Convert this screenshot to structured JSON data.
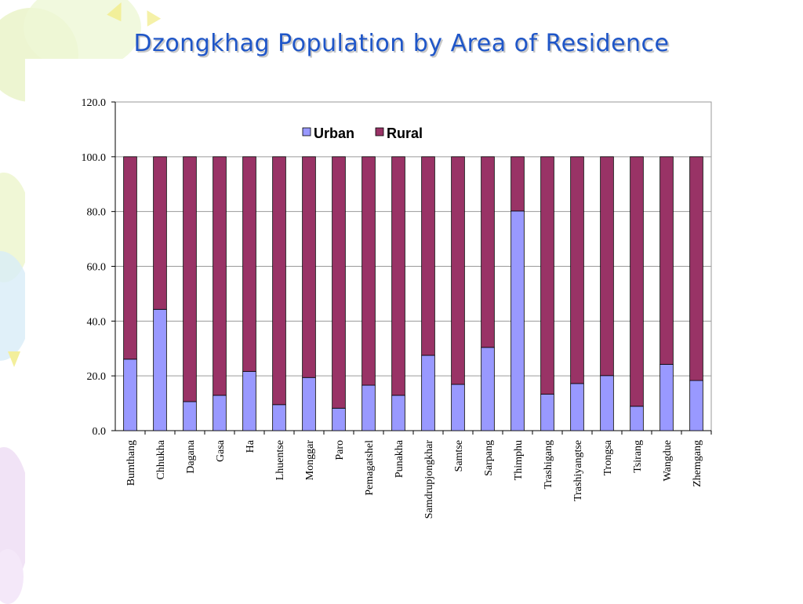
{
  "slide": {
    "title": "Dzongkhag Population by Area of Residence"
  },
  "colors": {
    "urban": "#9999ff",
    "rural": "#993366",
    "title": "#1f56c8"
  },
  "chart_data": {
    "type": "bar",
    "stacked": true,
    "title": "",
    "xlabel": "",
    "ylabel": "",
    "ylim": [
      0,
      120
    ],
    "yticks": [
      "0.0",
      "20.0",
      "40.0",
      "60.0",
      "80.0",
      "100.0",
      "120.0"
    ],
    "grid": true,
    "legend_position": "top-center",
    "categories": [
      "Bumthang",
      "Chhukha",
      "Dagana",
      "Gasa",
      "Ha",
      "Lhuentse",
      "Monggar",
      "Paro",
      "Pemagatshel",
      "Punakha",
      "Samdrupjongkhar",
      "Samtse",
      "Sarpang",
      "Thimphu",
      "Trashigang",
      "Trashiyangtse",
      "Trongsa",
      "Tsirang",
      "Wangdue",
      "Zhemgang"
    ],
    "series": [
      {
        "name": "Urban",
        "values": [
          26.1,
          44.3,
          10.6,
          12.9,
          21.6,
          9.5,
          19.4,
          8.2,
          16.6,
          12.9,
          27.5,
          16.9,
          30.4,
          80.2,
          13.3,
          17.2,
          20.1,
          8.9,
          24.2,
          18.3
        ]
      },
      {
        "name": "Rural",
        "values": [
          73.9,
          55.7,
          89.4,
          87.1,
          78.4,
          90.5,
          80.6,
          91.8,
          83.4,
          87.1,
          72.5,
          83.1,
          69.6,
          19.8,
          86.7,
          82.8,
          79.9,
          91.1,
          75.8,
          81.7
        ]
      }
    ]
  }
}
